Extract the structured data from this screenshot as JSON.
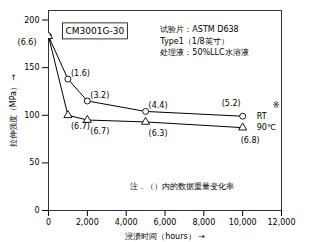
{
  "chart_data": {
    "type": "line",
    "title": "CM3001G-30",
    "xlabel": "浸渍时间（hours）",
    "ylabel": "拉伸强度（MPa）",
    "info_text": "试验片：ASTM D638\nType1（1/8英寸）\n处理液：50%LLC水溶液",
    "note": "注．（）内的数据重量变化率",
    "footnote_mark": "※",
    "x": [
      0,
      1000,
      2000,
      5000,
      10000
    ],
    "series": [
      {
        "name": "RT",
        "color": "#000000",
        "marker": "circle",
        "values": [
          183,
          138,
          115,
          104,
          99
        ],
        "point_labels": [
          null,
          "(1.6)",
          "(3.2)",
          "(4.4)",
          "(5.2)"
        ]
      },
      {
        "name": "90℃",
        "color": "#000000",
        "marker": "triangle",
        "values": [
          183,
          100,
          95,
          93,
          87
        ],
        "point_labels": [
          "(6.6)",
          "(6.7)",
          "(6.7)",
          "(6.3)",
          "(6.8)"
        ]
      }
    ],
    "xlim": [
      0,
      12000
    ],
    "ylim": [
      0,
      210
    ],
    "xticks": [
      0,
      {
        "value": 2000,
        "label": "2,000"
      },
      {
        "value": 4000,
        "label": "4,000"
      },
      {
        "value": 6000,
        "label": "6,000"
      },
      {
        "value": 8000,
        "label": "8,000"
      },
      {
        "value": 10000,
        "label": "10,000"
      },
      {
        "value": 12000,
        "label": "12,000"
      }
    ],
    "yticks": [
      0,
      50,
      100,
      150,
      200
    ],
    "grid": false
  }
}
